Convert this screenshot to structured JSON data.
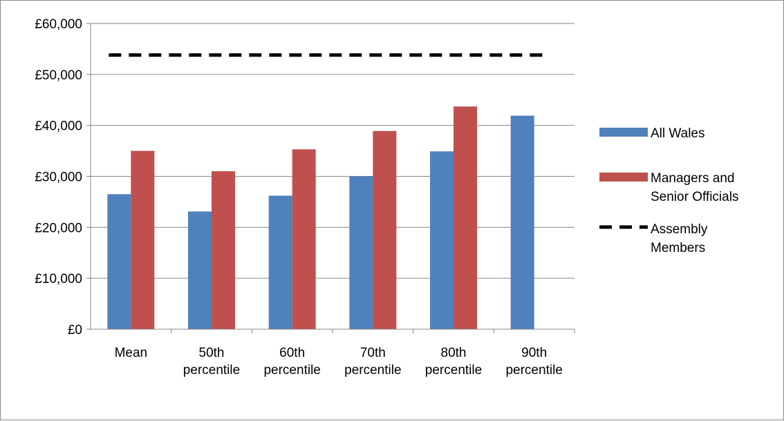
{
  "chart_data": {
    "type": "bar",
    "title": "",
    "xlabel": "",
    "ylabel": "",
    "ylim": [
      0,
      60000
    ],
    "y_step": 10000,
    "y_tick_labels": [
      "£0",
      "£10,000",
      "£20,000",
      "£30,000",
      "£40,000",
      "£50,000",
      "£60,000"
    ],
    "categories": [
      [
        "Mean"
      ],
      [
        "50th",
        "percentile"
      ],
      [
        "60th",
        "percentile"
      ],
      [
        "70th",
        "percentile"
      ],
      [
        "80th",
        "percentile"
      ],
      [
        "90th",
        "percentile"
      ]
    ],
    "series": [
      {
        "name": "All Wales",
        "values": [
          26500,
          23100,
          26200,
          30000,
          34900,
          41900
        ],
        "color": "#4f81bd"
      },
      {
        "name": "Managers and Senior Officials",
        "values": [
          35000,
          31000,
          35300,
          38900,
          43700,
          null
        ],
        "color": "#c0504d"
      }
    ],
    "reference_line": {
      "name": "Assembly Members",
      "value": 53800,
      "color": "#000000",
      "style": "dashed"
    },
    "grid": true,
    "legend_position": "right",
    "legend_labels": [
      [
        "All Wales"
      ],
      [
        "Managers and",
        "Senior Officials"
      ],
      [
        "Assembly",
        "Members"
      ]
    ]
  }
}
